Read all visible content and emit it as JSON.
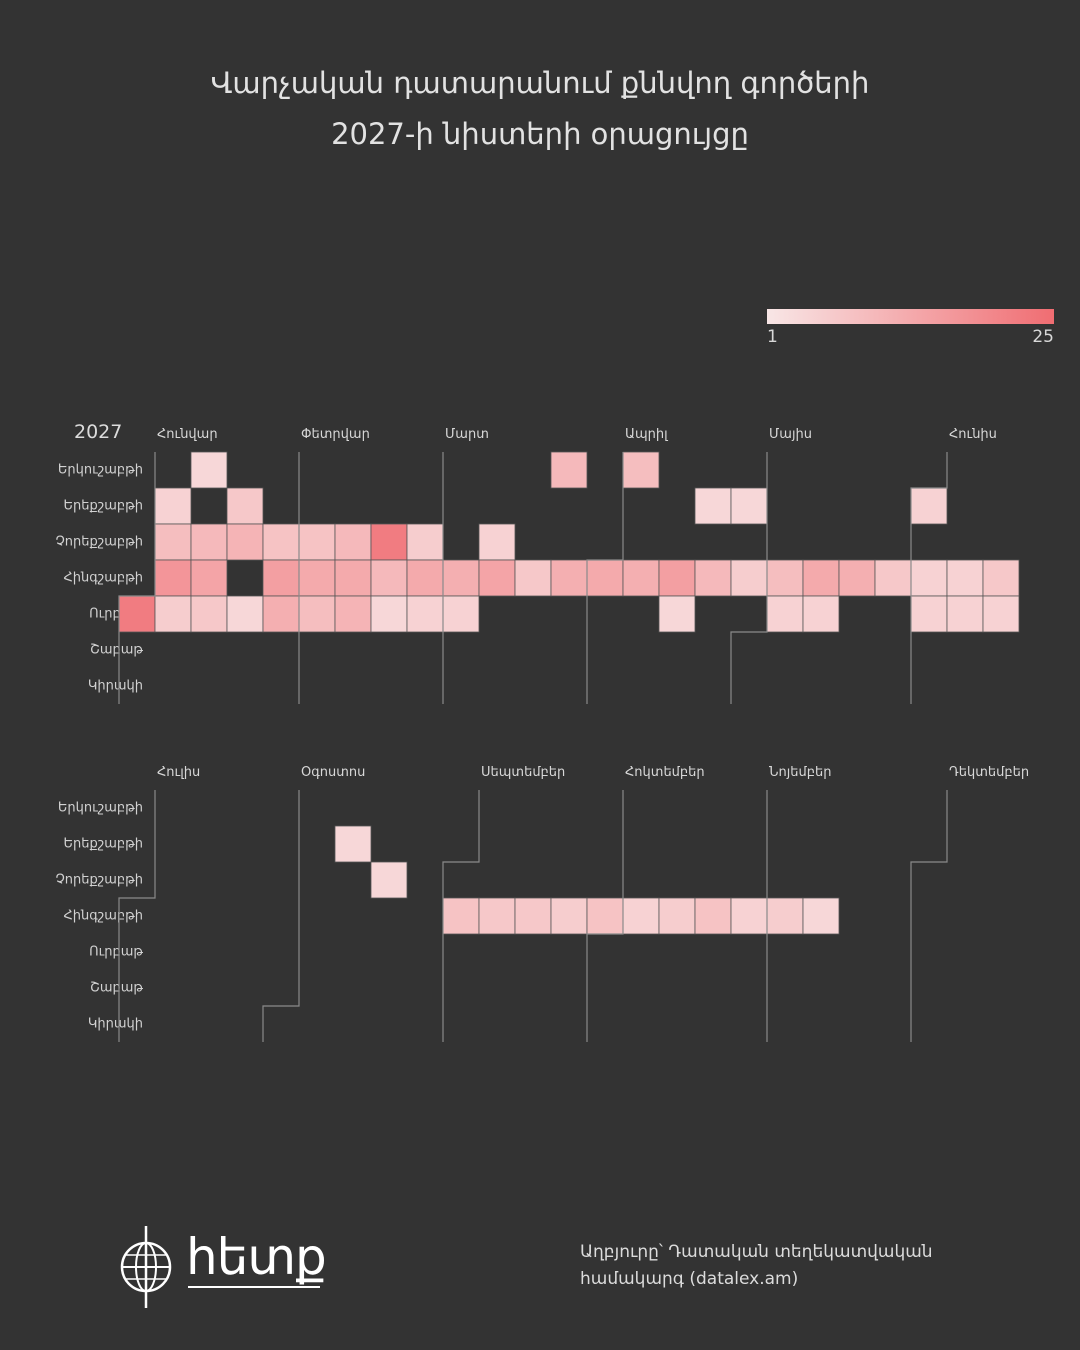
{
  "title": {
    "line1": "Վարչական դատարանում քննվող գործերի",
    "line2": "2027-ի նիստերի օրացույցը"
  },
  "legend": {
    "min_label": "1",
    "max_label": "25",
    "color_min": "#f8e6e6",
    "color_max": "#f06d72"
  },
  "colors": {
    "background": "#333333",
    "boundary_line": "#8a8a8a",
    "cell_border": "#555555"
  },
  "chart_data": {
    "type": "heatmap",
    "year": "2027",
    "weekdays": [
      "Երկուշաբթի",
      "Երեքշաբթի",
      "Չորեքշաբթի",
      "Հինգշաբթի",
      "Ուրբաթ",
      "Շաբաթ",
      "Կիրակի"
    ],
    "months": [
      "Հունվար",
      "Փետրվար",
      "Մարտ",
      "Ապրիլ",
      "Մայիս",
      "Հունիս",
      "Հուլիս",
      "Օգոստոս",
      "Սեպտեմբեր",
      "Հոկտեմբեր",
      "Նոյեմբեր",
      "Դեկտեմբեր"
    ],
    "value_range": [
      1,
      25
    ],
    "days": [
      {
        "date": "2027-01-01",
        "value": 22
      },
      {
        "date": "2027-01-05",
        "value": 5
      },
      {
        "date": "2027-01-06",
        "value": 9
      },
      {
        "date": "2027-01-07",
        "value": 17
      },
      {
        "date": "2027-01-08",
        "value": 6
      },
      {
        "date": "2027-01-11",
        "value": 4
      },
      {
        "date": "2027-01-13",
        "value": 10
      },
      {
        "date": "2027-01-14",
        "value": 14
      },
      {
        "date": "2027-01-15",
        "value": 7
      },
      {
        "date": "2027-01-19",
        "value": 7
      },
      {
        "date": "2027-01-20",
        "value": 11
      },
      {
        "date": "2027-01-22",
        "value": 4
      },
      {
        "date": "2027-01-27",
        "value": 8
      },
      {
        "date": "2027-01-28",
        "value": 15
      },
      {
        "date": "2027-01-29",
        "value": 12
      },
      {
        "date": "2027-02-03",
        "value": 8
      },
      {
        "date": "2027-02-04",
        "value": 13
      },
      {
        "date": "2027-02-05",
        "value": 9
      },
      {
        "date": "2027-02-10",
        "value": 10
      },
      {
        "date": "2027-02-11",
        "value": 13
      },
      {
        "date": "2027-02-12",
        "value": 11
      },
      {
        "date": "2027-02-17",
        "value": 22
      },
      {
        "date": "2027-02-18",
        "value": 10
      },
      {
        "date": "2027-02-19",
        "value": 4
      },
      {
        "date": "2027-02-24",
        "value": 6
      },
      {
        "date": "2027-02-25",
        "value": 13
      },
      {
        "date": "2027-02-26",
        "value": 5
      },
      {
        "date": "2027-03-04",
        "value": 12
      },
      {
        "date": "2027-03-05",
        "value": 5
      },
      {
        "date": "2027-03-10",
        "value": 5
      },
      {
        "date": "2027-03-11",
        "value": 14
      },
      {
        "date": "2027-03-18",
        "value": 7
      },
      {
        "date": "2027-03-22",
        "value": 10
      },
      {
        "date": "2027-03-25",
        "value": 12
      },
      {
        "date": "2027-04-01",
        "value": 13
      },
      {
        "date": "2027-04-05",
        "value": 9
      },
      {
        "date": "2027-04-08",
        "value": 12
      },
      {
        "date": "2027-04-15",
        "value": 15
      },
      {
        "date": "2027-04-16",
        "value": 4
      },
      {
        "date": "2027-04-20",
        "value": 4
      },
      {
        "date": "2027-04-22",
        "value": 10
      },
      {
        "date": "2027-04-27",
        "value": 4
      },
      {
        "date": "2027-04-29",
        "value": 6
      },
      {
        "date": "2027-05-06",
        "value": 9
      },
      {
        "date": "2027-05-07",
        "value": 5
      },
      {
        "date": "2027-05-13",
        "value": 13
      },
      {
        "date": "2027-05-14",
        "value": 5
      },
      {
        "date": "2027-05-20",
        "value": 12
      },
      {
        "date": "2027-05-27",
        "value": 7
      },
      {
        "date": "2027-06-01",
        "value": 5
      },
      {
        "date": "2027-06-03",
        "value": 5
      },
      {
        "date": "2027-06-04",
        "value": 5
      },
      {
        "date": "2027-06-10",
        "value": 5
      },
      {
        "date": "2027-06-11",
        "value": 5
      },
      {
        "date": "2027-06-17",
        "value": 7
      },
      {
        "date": "2027-06-18",
        "value": 5
      },
      {
        "date": "2027-08-10",
        "value": 4
      },
      {
        "date": "2027-08-18",
        "value": 4
      },
      {
        "date": "2027-09-02",
        "value": 8
      },
      {
        "date": "2027-09-09",
        "value": 7
      },
      {
        "date": "2027-09-16",
        "value": 7
      },
      {
        "date": "2027-09-23",
        "value": 6
      },
      {
        "date": "2027-09-30",
        "value": 8
      },
      {
        "date": "2027-10-07",
        "value": 5
      },
      {
        "date": "2027-10-14",
        "value": 6
      },
      {
        "date": "2027-10-21",
        "value": 8
      },
      {
        "date": "2027-10-28",
        "value": 5
      },
      {
        "date": "2027-11-04",
        "value": 6
      },
      {
        "date": "2027-11-11",
        "value": 4
      }
    ]
  },
  "logo": {
    "text": "հետք"
  },
  "source": {
    "line1": "Աղբյուրը՝ Դատական տեղեկատվական",
    "line2": "համակարգ (datalex.am)"
  }
}
